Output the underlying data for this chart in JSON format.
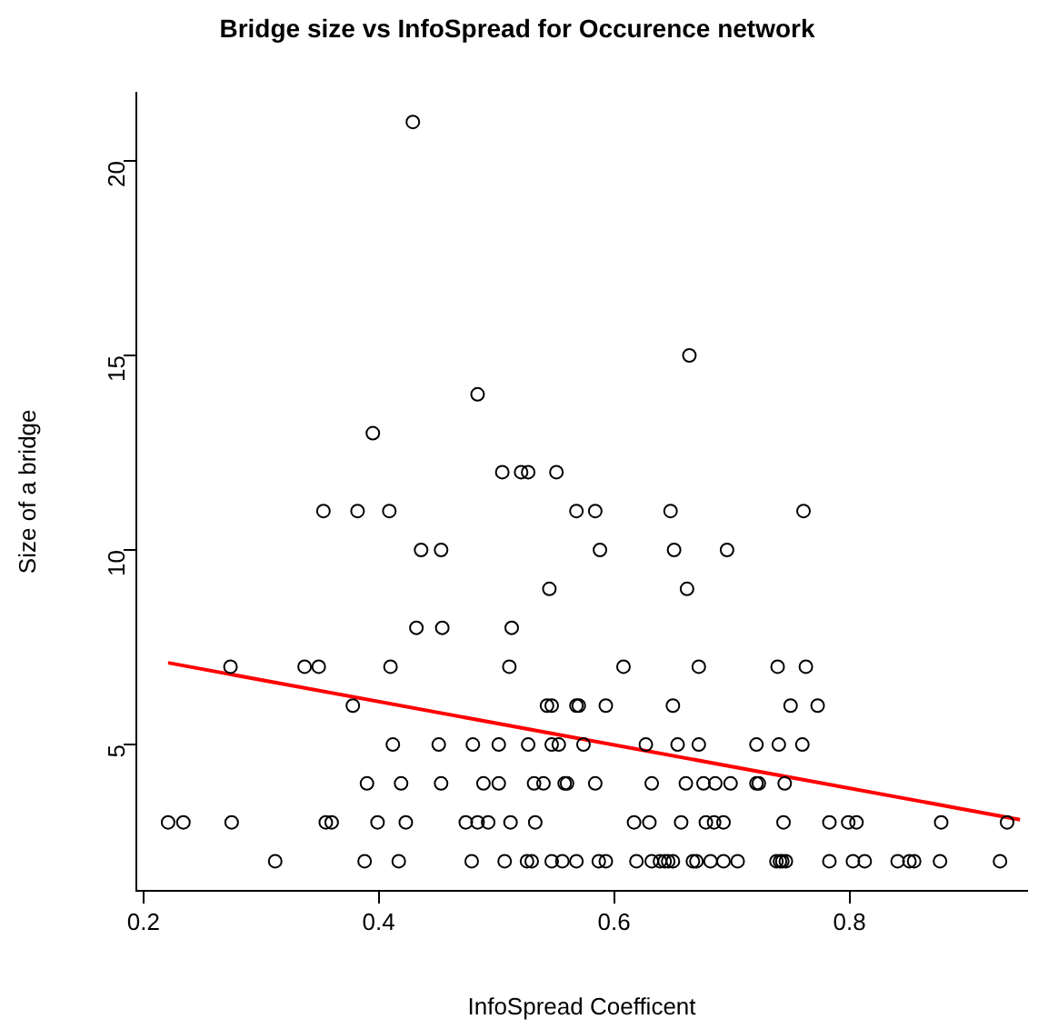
{
  "chart_data": {
    "type": "scatter",
    "title": "Bridge size vs InfoSpread for Occurence network",
    "xlabel": "InfoSpread Coefficent",
    "ylabel": "Size of a bridge",
    "xlim": [
      0.194,
      0.951
    ],
    "ylim": [
      1.24,
      21.76
    ],
    "xticks": [
      0.2,
      0.4,
      0.6,
      0.8
    ],
    "yticks": [
      5,
      10,
      15,
      20
    ],
    "grid": false,
    "legend": false,
    "marker": "circle",
    "series": [
      {
        "color": "#000000",
        "x": [
          0.429,
          0.664,
          0.484,
          0.395,
          0.505,
          0.521,
          0.527,
          0.551,
          0.353,
          0.382,
          0.409,
          0.568,
          0.584,
          0.648,
          0.761,
          0.436,
          0.453,
          0.588,
          0.651,
          0.696,
          0.545,
          0.662,
          0.432,
          0.454,
          0.513,
          0.274,
          0.337,
          0.349,
          0.41,
          0.511,
          0.608,
          0.672,
          0.739,
          0.763,
          0.378,
          0.543,
          0.547,
          0.568,
          0.57,
          0.593,
          0.65,
          0.75,
          0.773,
          0.412,
          0.451,
          0.48,
          0.502,
          0.527,
          0.547,
          0.553,
          0.574,
          0.627,
          0.654,
          0.672,
          0.721,
          0.74,
          0.76,
          0.39,
          0.419,
          0.453,
          0.489,
          0.502,
          0.532,
          0.54,
          0.558,
          0.56,
          0.584,
          0.632,
          0.661,
          0.676,
          0.686,
          0.699,
          0.721,
          0.723,
          0.745,
          0.221,
          0.234,
          0.275,
          0.355,
          0.36,
          0.399,
          0.423,
          0.474,
          0.484,
          0.493,
          0.512,
          0.533,
          0.617,
          0.63,
          0.657,
          0.678,
          0.685,
          0.693,
          0.744,
          0.783,
          0.799,
          0.806,
          0.878,
          0.934,
          0.312,
          0.388,
          0.417,
          0.479,
          0.507,
          0.526,
          0.53,
          0.547,
          0.556,
          0.568,
          0.587,
          0.593,
          0.619,
          0.632,
          0.639,
          0.643,
          0.646,
          0.65,
          0.667,
          0.67,
          0.682,
          0.693,
          0.705,
          0.738,
          0.741,
          0.743,
          0.746,
          0.783,
          0.803,
          0.813,
          0.841,
          0.851,
          0.855,
          0.877,
          0.928
        ],
        "values": [
          21,
          15,
          14,
          13,
          12,
          12,
          12,
          12,
          11,
          11,
          11,
          11,
          11,
          11,
          11,
          10,
          10,
          10,
          10,
          10,
          9,
          9,
          8,
          8,
          8,
          7,
          7,
          7,
          7,
          7,
          7,
          7,
          7,
          7,
          6,
          6,
          6,
          6,
          6,
          6,
          6,
          6,
          6,
          5,
          5,
          5,
          5,
          5,
          5,
          5,
          5,
          5,
          5,
          5,
          5,
          5,
          5,
          4,
          4,
          4,
          4,
          4,
          4,
          4,
          4,
          4,
          4,
          4,
          4,
          4,
          4,
          4,
          4,
          4,
          4,
          3,
          3,
          3,
          3,
          3,
          3,
          3,
          3,
          3,
          3,
          3,
          3,
          3,
          3,
          3,
          3,
          3,
          3,
          3,
          3,
          3,
          3,
          3,
          3,
          2,
          2,
          2,
          2,
          2,
          2,
          2,
          2,
          2,
          2,
          2,
          2,
          2,
          2,
          2,
          2,
          2,
          2,
          2,
          2,
          2,
          2,
          2,
          2,
          2,
          2,
          2,
          2,
          2,
          2,
          2,
          2,
          2,
          2,
          2
        ]
      },
      {
        "type": "line",
        "marker": "none",
        "color": "#ff0000",
        "x": [
          0.221,
          0.945
        ],
        "values": [
          7.1,
          3.07
        ]
      }
    ]
  }
}
